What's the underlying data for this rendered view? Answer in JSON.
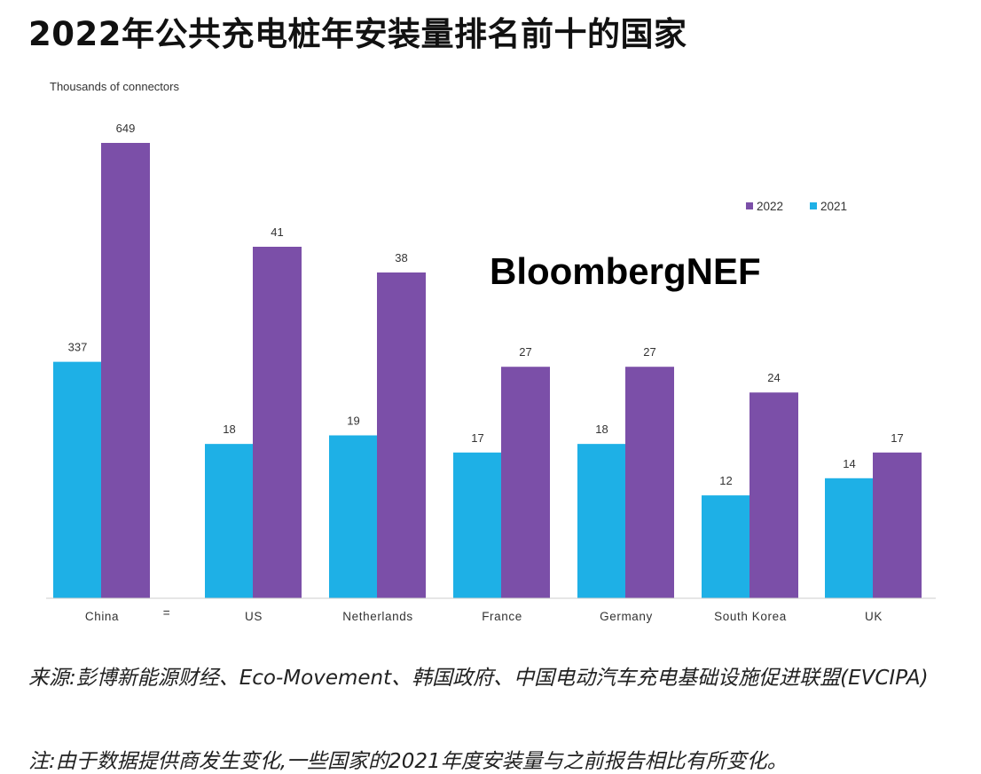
{
  "title": "2022年公共充电桩年安装量排名前十的国家",
  "watermark": "BloombergNEF",
  "source_note": "来源:彭博新能源财经、Eco-Movement、韩国政府、中国电动汽车充电基础设施促进联盟(EVCIPA)",
  "footnote": "注:由于数据提供商发生变化,一些国家的2021年度安装量与之前报告相比有所变化。",
  "colors": {
    "y2022": "#7b4fa8",
    "y2021": "#1eb0e6"
  },
  "chart_data": {
    "type": "bar",
    "title": "2022年公共充电桩年安装量排名前十的国家",
    "ylabel": "Thousands of connectors",
    "axis_break_label": "=",
    "axis_break": true,
    "legend_position": "top-right",
    "grid": false,
    "categories": [
      "China",
      "US",
      "Netherlands",
      "France",
      "Germany",
      "South Korea",
      "UK"
    ],
    "series": [
      {
        "name": "2021",
        "color": "#1eb0e6",
        "values": [
          337,
          18,
          19,
          17,
          18,
          12,
          14
        ]
      },
      {
        "name": "2022",
        "color": "#7b4fa8",
        "values": [
          649,
          41,
          38,
          27,
          27,
          24,
          17
        ]
      }
    ],
    "legend": [
      "2022",
      "2021"
    ]
  }
}
